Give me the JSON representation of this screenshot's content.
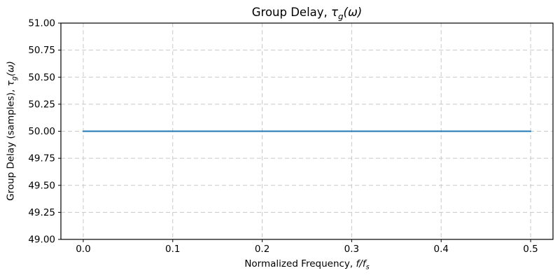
{
  "figure": {
    "background": "#ffffff",
    "title": {
      "prefix": "Group Delay, ",
      "math_symbol": "τ",
      "math_sub": "g",
      "math_suffix": "(ω)"
    },
    "xlabel": {
      "prefix": "Normalized Frequency, ",
      "math_symbol": "f/f",
      "math_sub": "s",
      "math_suffix": ""
    },
    "ylabel": {
      "prefix": "Group Delay (samples), ",
      "math_symbol": "τ",
      "math_sub": "g",
      "math_suffix": "(ω)"
    }
  },
  "chart_data": {
    "type": "line",
    "title": "Group Delay, τ_g(ω)",
    "xlabel": "Normalized Frequency, f/f_s",
    "ylabel": "Group Delay (samples), τ_g(ω)",
    "xlim": [
      -0.025,
      0.525
    ],
    "ylim": [
      49.0,
      51.0
    ],
    "x_ticks": [
      0.0,
      0.1,
      0.2,
      0.3,
      0.4,
      0.5
    ],
    "x_tick_labels": [
      "0.0",
      "0.1",
      "0.2",
      "0.3",
      "0.4",
      "0.5"
    ],
    "y_ticks": [
      49.0,
      49.25,
      49.5,
      49.75,
      50.0,
      50.25,
      50.5,
      50.75,
      51.0
    ],
    "y_tick_labels": [
      "49.00",
      "49.25",
      "49.50",
      "49.75",
      "50.00",
      "50.25",
      "50.50",
      "50.75",
      "51.00"
    ],
    "grid": true,
    "grid_style": "dashed",
    "grid_color": "#c8c8c8",
    "frame_color": "#000000",
    "legend": "none",
    "series": [
      {
        "name": "group-delay",
        "color": "#1f77b4",
        "linewidth": 2,
        "x": [
          0.0,
          0.5
        ],
        "y": [
          50.0,
          50.0
        ],
        "constant_value": 50.0
      }
    ]
  }
}
